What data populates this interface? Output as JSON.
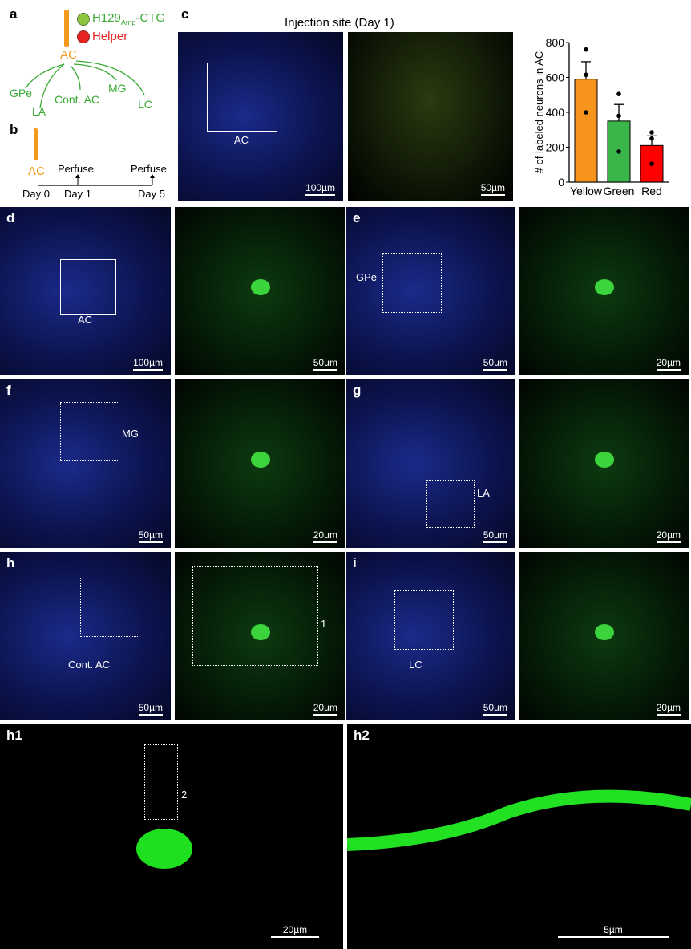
{
  "panel_a": {
    "label": "a",
    "virus_main": "H129",
    "virus_sub": "Amp",
    "virus_suffix": "-CTG",
    "helper": "Helper",
    "source": "AC",
    "targets": [
      "GPe",
      "LA",
      "Cont. AC",
      "MG",
      "LC"
    ],
    "colors": {
      "green": "#3aaa35",
      "red": "#e52421",
      "orange": "#f39a1e"
    }
  },
  "panel_b": {
    "label": "b",
    "source": "AC",
    "events": [
      "Perfuse",
      "Perfuse"
    ],
    "days": [
      "Day 0",
      "Day 1",
      "Day 5"
    ]
  },
  "panel_c": {
    "label": "c",
    "title": "Injection site (Day 1)",
    "region": "AC",
    "scale_left": "100µm",
    "scale_right": "50µm"
  },
  "chart_data": {
    "type": "bar",
    "ylabel": "# of labeled neurons in AC",
    "ylim": [
      0,
      800
    ],
    "yticks": [
      0,
      200,
      400,
      600,
      800
    ],
    "categories": [
      "Yellow",
      "Green",
      "Red"
    ],
    "values": [
      590,
      350,
      210
    ],
    "sem": [
      100,
      95,
      55
    ],
    "points": [
      [
        760,
        615,
        400
      ],
      [
        505,
        380,
        175
      ],
      [
        285,
        250,
        105
      ]
    ],
    "colors": [
      "#f7941d",
      "#39b54a",
      "#ff0000"
    ]
  },
  "panels": {
    "d": {
      "label": "d",
      "region": "AC",
      "scale_left": "100µm",
      "scale_right": "50µm"
    },
    "e": {
      "label": "e",
      "region": "GPe",
      "scale_left": "50µm",
      "scale_right": "20µm"
    },
    "f": {
      "label": "f",
      "region": "MG",
      "scale_left": "50µm",
      "scale_right": "20µm"
    },
    "g": {
      "label": "g",
      "region": "LA",
      "scale_left": "50µm",
      "scale_right": "20µm"
    },
    "h": {
      "label": "h",
      "region": "Cont. AC",
      "scale_left": "50µm",
      "scale_right": "20µm",
      "inset": "1"
    },
    "i": {
      "label": "i",
      "region": "LC",
      "scale_left": "50µm",
      "scale_right": "20µm"
    },
    "h1": {
      "label": "h1",
      "inset": "2",
      "scale": "20µm"
    },
    "h2": {
      "label": "h2",
      "scale": "5µm"
    }
  }
}
